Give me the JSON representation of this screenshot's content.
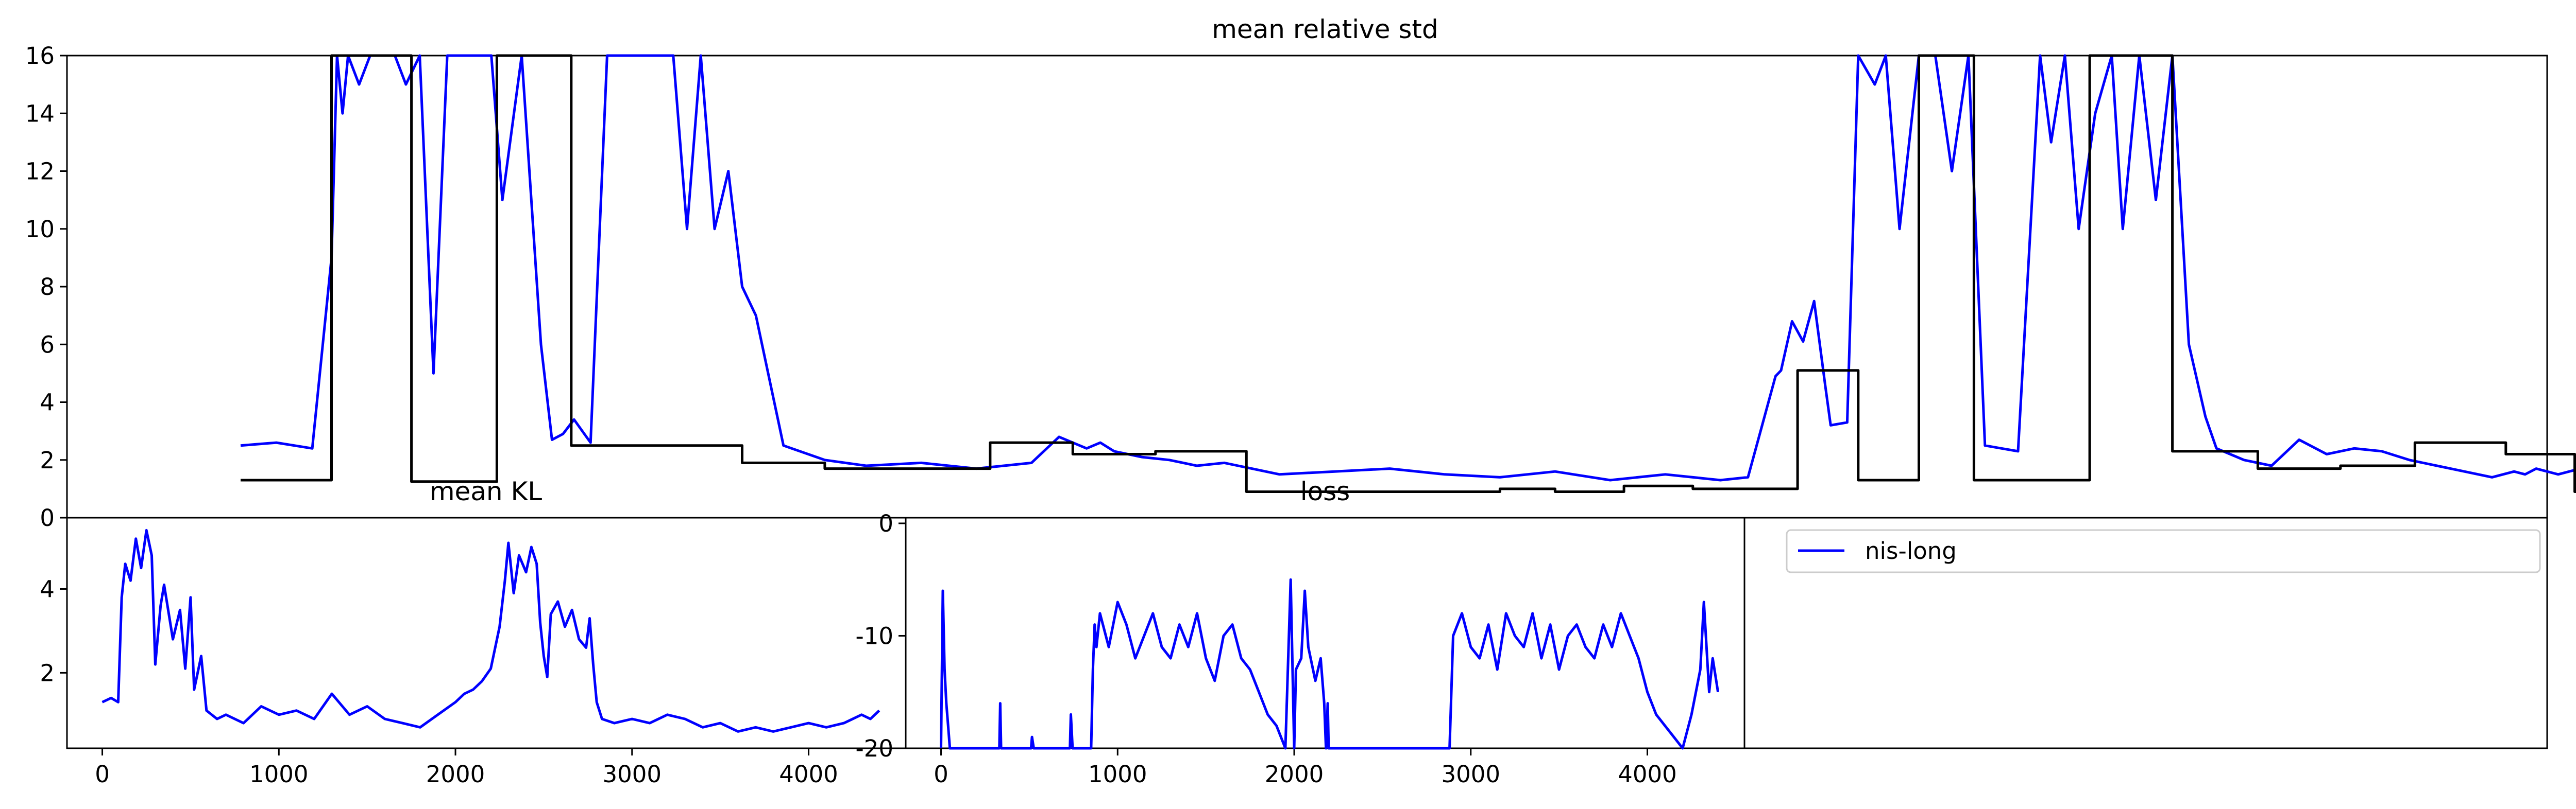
{
  "figure": {
    "top_title": "mean relative std",
    "kl_title": "mean KL",
    "loss_title": "loss",
    "legend_label": "nis-long",
    "series_color": "#0000ff",
    "reference_color": "#000000"
  },
  "chart_data": [
    {
      "type": "line",
      "title": "mean relative std",
      "xlabel": "",
      "ylabel": "",
      "x_ticks": [],
      "y_ticks": [
        "0",
        "2",
        "4",
        "6",
        "8",
        "10",
        "12",
        "14",
        "16"
      ],
      "xlim": [
        -200,
        8800
      ],
      "ylim": [
        0,
        16
      ],
      "series": [
        {
          "name": "nis-long",
          "color": "#0000ff",
          "x": [
            430,
            560,
            690,
            760,
            780,
            800,
            820,
            860,
            900,
            940,
            990,
            1030,
            1080,
            1130,
            1180,
            1230,
            1290,
            1340,
            1380,
            1450,
            1520,
            1560,
            1600,
            1640,
            1700,
            1760,
            1800,
            1850,
            1900,
            1950,
            2000,
            2050,
            2100,
            2150,
            2200,
            2250,
            2300,
            2400,
            2550,
            2700,
            2900,
            3100,
            3300,
            3400,
            3500,
            3550,
            3600,
            3700,
            3800,
            3900,
            4000,
            4100,
            4200,
            4400,
            4600,
            4800,
            5000,
            5200,
            5400,
            5600,
            5800,
            5900,
            6000,
            6020,
            6060,
            6100,
            6140,
            6180,
            6200,
            6260,
            6300,
            6360,
            6400,
            6450,
            6520,
            6580,
            6640,
            6700,
            6760,
            6820,
            6880,
            6960,
            7000,
            7050,
            7100,
            7160,
            7220,
            7260,
            7320,
            7380,
            7440,
            7500,
            7560,
            7600,
            7700,
            7800,
            7900,
            8000,
            8100,
            8200,
            8300,
            8400,
            8500,
            8600,
            8640,
            8680,
            8720,
            8760,
            8800,
            8840,
            8880,
            8920,
            8960,
            9000,
            9040,
            9060
          ],
          "y": [
            2.5,
            2.6,
            2.4,
            9,
            16,
            14,
            16,
            15,
            16,
            16,
            16,
            15,
            16,
            5,
            16,
            16,
            16,
            16,
            11,
            16,
            6,
            2.7,
            2.9,
            3.4,
            2.6,
            16,
            16,
            16,
            16,
            16,
            16,
            10,
            16,
            10,
            12,
            8,
            7,
            2.5,
            2.0,
            1.8,
            1.9,
            1.7,
            1.9,
            2.8,
            2.4,
            2.6,
            2.3,
            2.1,
            2.0,
            1.8,
            1.9,
            1.7,
            1.5,
            1.6,
            1.7,
            1.5,
            1.4,
            1.6,
            1.3,
            1.5,
            1.3,
            1.4,
            4.9,
            5.1,
            6.8,
            6.1,
            7.5,
            4.6,
            3.2,
            3.3,
            16,
            15,
            16,
            10,
            16,
            16,
            12,
            16,
            2.5,
            2.4,
            2.3,
            16,
            13,
            16,
            10,
            14,
            16,
            10,
            16,
            11,
            16,
            6,
            3.5,
            2.4,
            2.0,
            1.8,
            2.7,
            2.2,
            2.4,
            2.3,
            2.0,
            1.8,
            1.6,
            1.4,
            1.5,
            1.6,
            1.5,
            1.7,
            1.6,
            1.5,
            1.6,
            1.7,
            1.5,
            2.0,
            2.3,
            1.8
          ]
        },
        {
          "name": "",
          "color": "#000000",
          "step": true,
          "x": [
            430,
            760,
            1050,
            1360,
            1630,
            2250,
            2550,
            3150,
            3450,
            3750,
            4080,
            4300,
            5000,
            5200,
            5450,
            5700,
            5900,
            6080,
            6300,
            6520,
            6720,
            7140,
            7440,
            7750,
            8050,
            8320,
            8650,
            8900,
            8940,
            9080
          ],
          "y": [
            1.3,
            16,
            1.25,
            16,
            2.5,
            1.9,
            1.7,
            2.6,
            2.2,
            2.3,
            0.9,
            0.9,
            1.0,
            0.9,
            1.1,
            1.0,
            1.0,
            5.1,
            1.3,
            16,
            1.3,
            16,
            2.3,
            1.7,
            1.8,
            2.6,
            2.2,
            0.9,
            5.0,
            5.0
          ]
        }
      ]
    },
    {
      "type": "line",
      "title": "mean KL",
      "xlabel": "",
      "ylabel": "",
      "x_ticks": [
        "0",
        "1000",
        "2000",
        "3000",
        "4000"
      ],
      "y_ticks": [
        "2",
        "4"
      ],
      "xlim": [
        -200,
        4550
      ],
      "ylim": [
        0.2,
        5.7
      ],
      "series": [
        {
          "name": "nis-long",
          "color": "#0000ff",
          "x": [
            0,
            50,
            90,
            110,
            130,
            160,
            190,
            220,
            250,
            280,
            300,
            330,
            350,
            400,
            440,
            470,
            500,
            520,
            560,
            590,
            620,
            650,
            700,
            800,
            900,
            1000,
            1100,
            1200,
            1300,
            1400,
            1500,
            1600,
            1700,
            1800,
            1900,
            2000,
            2050,
            2100,
            2150,
            2200,
            2250,
            2280,
            2300,
            2330,
            2360,
            2400,
            2430,
            2460,
            2480,
            2500,
            2520,
            2540,
            2580,
            2620,
            2660,
            2700,
            2740,
            2760,
            2780,
            2800,
            2830,
            2900,
            3000,
            3100,
            3200,
            3300,
            3400,
            3500,
            3600,
            3700,
            3800,
            3900,
            4000,
            4100,
            4200,
            4300,
            4350,
            4400
          ],
          "y": [
            1.3,
            1.4,
            1.3,
            3.8,
            4.6,
            4.2,
            5.2,
            4.5,
            5.4,
            4.8,
            2.2,
            3.6,
            4.1,
            2.8,
            3.5,
            2.1,
            3.8,
            1.6,
            2.4,
            1.1,
            1.0,
            0.9,
            1.0,
            0.8,
            1.2,
            1.0,
            1.1,
            0.9,
            1.5,
            1.0,
            1.2,
            0.9,
            0.8,
            0.7,
            1.0,
            1.3,
            1.5,
            1.6,
            1.8,
            2.1,
            3.1,
            4.2,
            5.1,
            3.9,
            4.8,
            4.4,
            5.0,
            4.6,
            3.2,
            2.4,
            1.9,
            3.4,
            3.7,
            3.1,
            3.5,
            2.8,
            2.6,
            3.3,
            2.2,
            1.3,
            0.9,
            0.8,
            0.9,
            0.8,
            1.0,
            0.9,
            0.7,
            0.8,
            0.6,
            0.7,
            0.6,
            0.7,
            0.8,
            0.7,
            0.8,
            1.0,
            0.9,
            1.1
          ]
        }
      ]
    },
    {
      "type": "line",
      "title": "loss",
      "xlabel": "",
      "ylabel": "",
      "x_ticks": [
        "0",
        "1000",
        "2000",
        "3000",
        "4000"
      ],
      "y_ticks": [
        "0",
        "-10",
        "-20"
      ],
      "xlim": [
        -200,
        4550
      ],
      "ylim": [
        -20,
        0.5
      ],
      "series": [
        {
          "name": "nis-long",
          "color": "#0000ff",
          "x": [
            0,
            10,
            20,
            30,
            40,
            50,
            55,
            60,
            330,
            335,
            340,
            510,
            515,
            525,
            730,
            735,
            745,
            850,
            860,
            870,
            880,
            900,
            950,
            1000,
            1050,
            1100,
            1150,
            1200,
            1250,
            1300,
            1350,
            1400,
            1450,
            1500,
            1550,
            1600,
            1650,
            1700,
            1750,
            1800,
            1850,
            1900,
            1950,
            1980,
            2000,
            2010,
            2040,
            2060,
            2080,
            2120,
            2150,
            2170,
            2180,
            2190,
            2195,
            2200,
            2880,
            2900,
            2950,
            3000,
            3050,
            3100,
            3150,
            3200,
            3250,
            3300,
            3350,
            3400,
            3450,
            3500,
            3550,
            3600,
            3650,
            3700,
            3750,
            3800,
            3850,
            3900,
            3950,
            4000,
            4050,
            4100,
            4150,
            4200,
            4250,
            4300,
            4320,
            4350,
            4370,
            4390,
            4400
          ],
          "y": [
            -20,
            -6,
            -13,
            -16,
            -18,
            -20,
            -20,
            -20,
            -20,
            -16,
            -20,
            -20,
            -19,
            -20,
            -20,
            -17,
            -20,
            -20,
            -13,
            -9,
            -11,
            -8,
            -11,
            -7,
            -9,
            -12,
            -10,
            -8,
            -11,
            -12,
            -9,
            -11,
            -8,
            -12,
            -14,
            -10,
            -9,
            -12,
            -13,
            -15,
            -17,
            -18,
            -20,
            -5,
            -20,
            -13,
            -12,
            -6,
            -11,
            -14,
            -12,
            -16,
            -20,
            -16,
            -20,
            -20,
            -20,
            -10,
            -8,
            -11,
            -12,
            -9,
            -13,
            -8,
            -10,
            -11,
            -8,
            -12,
            -9,
            -13,
            -10,
            -9,
            -11,
            -12,
            -9,
            -11,
            -8,
            -10,
            -12,
            -15,
            -17,
            -18,
            -19,
            -20,
            -17,
            -13,
            -7,
            -15,
            -12,
            -14,
            -15
          ]
        }
      ]
    }
  ]
}
